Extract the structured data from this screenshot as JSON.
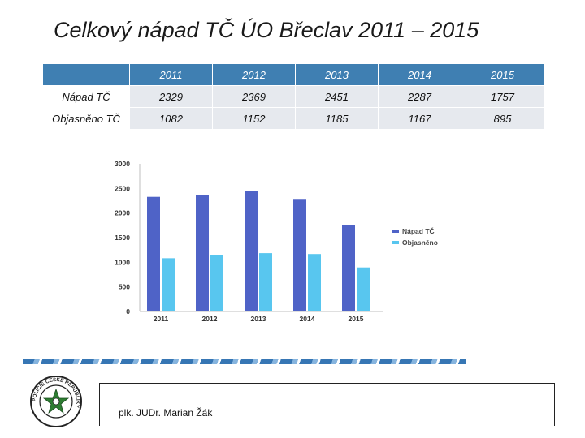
{
  "title": "Celkový nápad TČ ÚO Břeclav 2011 – 2015",
  "table": {
    "years": [
      "2011",
      "2012",
      "2013",
      "2014",
      "2015"
    ],
    "rows": [
      {
        "label": "Nápad TČ",
        "values": [
          "2329",
          "2369",
          "2451",
          "2287",
          "1757"
        ]
      },
      {
        "label": "Objasněno TČ",
        "values": [
          "1082",
          "1152",
          "1185",
          "1167",
          "895"
        ]
      }
    ]
  },
  "chart_data": {
    "type": "bar",
    "categories": [
      "2011",
      "2012",
      "2013",
      "2014",
      "2015"
    ],
    "series": [
      {
        "name": "Nápad TČ",
        "values": [
          2329,
          2369,
          2451,
          2287,
          1757
        ],
        "color": "#4f63c7"
      },
      {
        "name": "Objasněno",
        "values": [
          1082,
          1152,
          1185,
          1167,
          895
        ],
        "color": "#58c6ef"
      }
    ],
    "yticks": [
      "3000",
      "2500",
      "2000",
      "1500",
      "1000",
      "500",
      "0"
    ],
    "ylim": [
      0,
      3000
    ],
    "legend_position": "right",
    "grid": false
  },
  "footer": {
    "author": "plk. JUDr. Marian Žák"
  },
  "emblem": {
    "text": "POLICIE ČESKÉ REPUBLIKY"
  }
}
